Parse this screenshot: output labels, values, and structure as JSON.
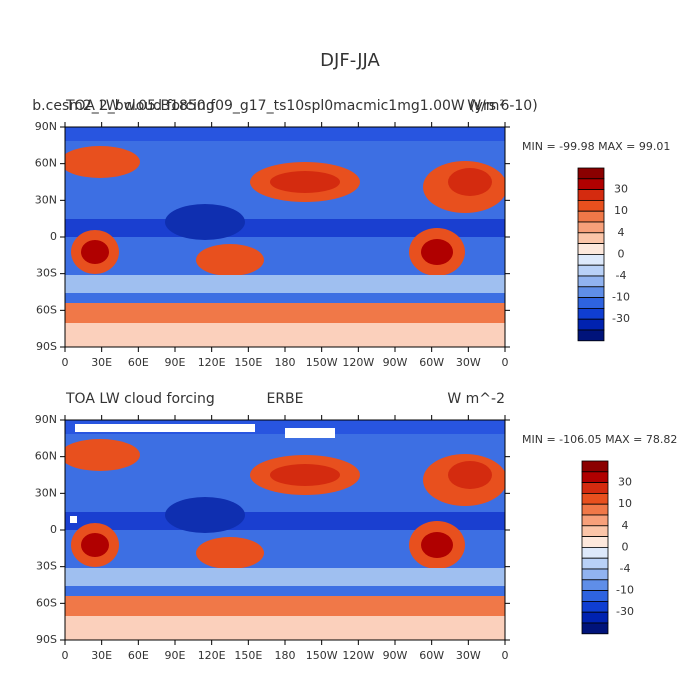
{
  "title": "DJF-JJA",
  "colorbar_colors": [
    "#8b0000",
    "#b00000",
    "#d42b0f",
    "#e8501e",
    "#f07848",
    "#f7a07a",
    "#fbc5a8",
    "#fde8dc",
    "#dde9fb",
    "#b9d1f7",
    "#91b3f0",
    "#5f8ee8",
    "#2e63e0",
    "#0f3ed2",
    "#0022b0",
    "#00137a"
  ],
  "panels": [
    {
      "left_title": "TOA LW cloud forcing",
      "center_title": "b.cesm2_2_bw.05.B1850.f09_g17_ts10spl0macmic1mg1.00W (yrs 6-10)",
      "right_title": "W/m²",
      "stats": "MIN = -99.98 MAX =  99.01",
      "lat_labels": [
        "90N",
        "60N",
        "30N",
        "0",
        "30S",
        "60S",
        "90S"
      ],
      "lon_labels": [
        "0",
        "30E",
        "60E",
        "90E",
        "120E",
        "150E",
        "180",
        "150W",
        "120W",
        "90W",
        "60W",
        "30W",
        "0"
      ],
      "colorbar_labels": [
        30,
        10,
        4,
        0,
        -4,
        -10,
        -30
      ]
    },
    {
      "left_title": "TOA LW cloud forcing",
      "center_title": "ERBE",
      "right_title": "W m^-2",
      "stats": "MIN = -106.05 MAX =  78.82",
      "lat_labels": [
        "90N",
        "60N",
        "30N",
        "0",
        "30S",
        "60S",
        "90S"
      ],
      "lon_labels": [
        "0",
        "30E",
        "60E",
        "90E",
        "120E",
        "150E",
        "180",
        "150W",
        "120W",
        "90W",
        "60W",
        "30W",
        "0"
      ],
      "colorbar_labels": [
        30,
        10,
        4,
        0,
        -4,
        -10,
        -30
      ]
    }
  ]
}
